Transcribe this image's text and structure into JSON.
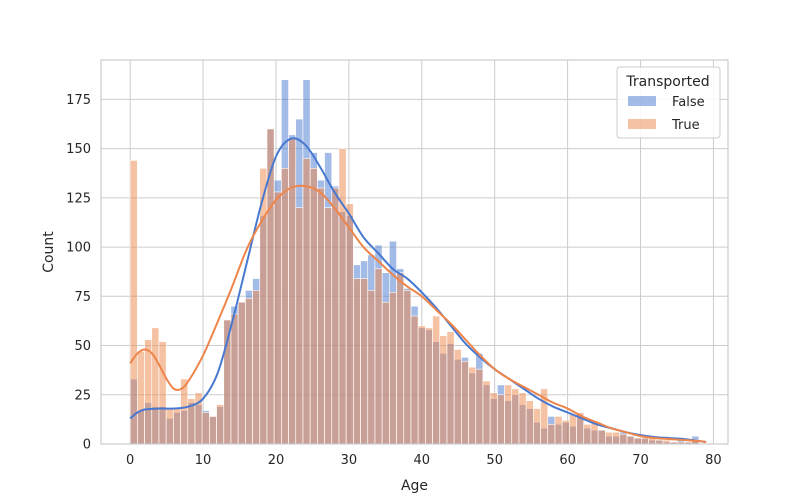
{
  "chart_data": {
    "type": "bar",
    "subtype": "overlaid-histogram-with-kde",
    "xlabel": "Age",
    "ylabel": "Count",
    "xlim": [
      -4,
      82
    ],
    "ylim": [
      0,
      195
    ],
    "xticks": [
      0,
      10,
      20,
      30,
      40,
      50,
      60,
      70,
      80
    ],
    "yticks": [
      0,
      25,
      50,
      75,
      100,
      125,
      150,
      175
    ],
    "grid": true,
    "legend": {
      "title": "Transported",
      "placement": "top-right"
    },
    "bin_edges_start": 0,
    "bin_width": 0.9875,
    "series": [
      {
        "name": "False",
        "color": "#4878d0",
        "fill_opacity": 0.5,
        "values": [
          33,
          17,
          21,
          19,
          19,
          13,
          16,
          17,
          21,
          20,
          17,
          14,
          19,
          63,
          70,
          72,
          78,
          84,
          116,
          160,
          134,
          185,
          157,
          165,
          185,
          148,
          134,
          148,
          131,
          118,
          116,
          91,
          93,
          96,
          101,
          87,
          103,
          89,
          79,
          70,
          59,
          58,
          52,
          46,
          51,
          43,
          44,
          36,
          46,
          30,
          23,
          30,
          22,
          25,
          20,
          18,
          11,
          8,
          14,
          10,
          11,
          9,
          15,
          8,
          7,
          7,
          4,
          4,
          6,
          4,
          3,
          3,
          2,
          2,
          1,
          1,
          2,
          1,
          4
        ],
        "kde": [
          [
            0,
            13
          ],
          [
            1,
            16
          ],
          [
            2,
            17.5
          ],
          [
            4,
            18
          ],
          [
            6,
            18
          ],
          [
            8,
            19
          ],
          [
            10,
            23
          ],
          [
            12,
            36
          ],
          [
            14,
            62
          ],
          [
            16,
            92
          ],
          [
            18,
            122
          ],
          [
            20,
            146
          ],
          [
            22,
            155
          ],
          [
            24,
            152
          ],
          [
            26,
            141
          ],
          [
            28,
            128
          ],
          [
            30,
            117
          ],
          [
            32,
            105
          ],
          [
            34,
            97
          ],
          [
            36,
            89
          ],
          [
            38,
            84
          ],
          [
            40,
            77
          ],
          [
            42,
            69
          ],
          [
            44,
            60
          ],
          [
            46,
            51
          ],
          [
            48,
            44
          ],
          [
            50,
            38
          ],
          [
            52,
            33
          ],
          [
            54,
            28
          ],
          [
            56,
            23
          ],
          [
            58,
            19
          ],
          [
            60,
            16
          ],
          [
            62,
            13
          ],
          [
            64,
            10
          ],
          [
            66,
            8
          ],
          [
            68,
            6
          ],
          [
            70,
            4.5
          ],
          [
            72,
            3.5
          ],
          [
            74,
            3
          ],
          [
            76,
            2.5
          ],
          [
            78,
            1.5
          ],
          [
            79,
            1
          ]
        ]
      },
      {
        "name": "True",
        "color": "#ee854a",
        "fill_opacity": 0.5,
        "values": [
          144,
          47,
          53,
          59,
          52,
          18,
          18,
          33,
          23,
          26,
          16,
          14,
          20,
          63,
          66,
          72,
          74,
          78,
          140,
          160,
          128,
          140,
          155,
          120,
          145,
          140,
          130,
          120,
          130,
          150,
          122,
          84,
          84,
          78,
          89,
          72,
          77,
          87,
          78,
          65,
          60,
          59,
          65,
          55,
          57,
          48,
          42,
          39,
          38,
          32,
          26,
          25,
          30,
          28,
          26,
          22,
          18,
          28,
          10,
          14,
          12,
          15,
          16,
          10,
          11,
          7,
          6,
          6,
          5,
          4,
          3,
          3,
          3,
          2,
          2,
          1,
          1,
          1,
          2
        ],
        "kde": [
          [
            0,
            41
          ],
          [
            1,
            46
          ],
          [
            2,
            48
          ],
          [
            3,
            46
          ],
          [
            4,
            40
          ],
          [
            5,
            33
          ],
          [
            6,
            28
          ],
          [
            7,
            28
          ],
          [
            8,
            32
          ],
          [
            10,
            45
          ],
          [
            12,
            62
          ],
          [
            14,
            80
          ],
          [
            16,
            99
          ],
          [
            18,
            113
          ],
          [
            20,
            124
          ],
          [
            22,
            130
          ],
          [
            24,
            131
          ],
          [
            26,
            128
          ],
          [
            28,
            120
          ],
          [
            30,
            110
          ],
          [
            32,
            100
          ],
          [
            34,
            93
          ],
          [
            36,
            86
          ],
          [
            38,
            80
          ],
          [
            40,
            75
          ],
          [
            42,
            68
          ],
          [
            44,
            61
          ],
          [
            46,
            53
          ],
          [
            48,
            45
          ],
          [
            50,
            38
          ],
          [
            52,
            33
          ],
          [
            54,
            29
          ],
          [
            56,
            25
          ],
          [
            58,
            21
          ],
          [
            60,
            18
          ],
          [
            62,
            14
          ],
          [
            64,
            11
          ],
          [
            66,
            8
          ],
          [
            68,
            6
          ],
          [
            70,
            4
          ],
          [
            72,
            3
          ],
          [
            74,
            2.5
          ],
          [
            76,
            2
          ],
          [
            78,
            1.5
          ],
          [
            79,
            1
          ]
        ]
      }
    ]
  }
}
